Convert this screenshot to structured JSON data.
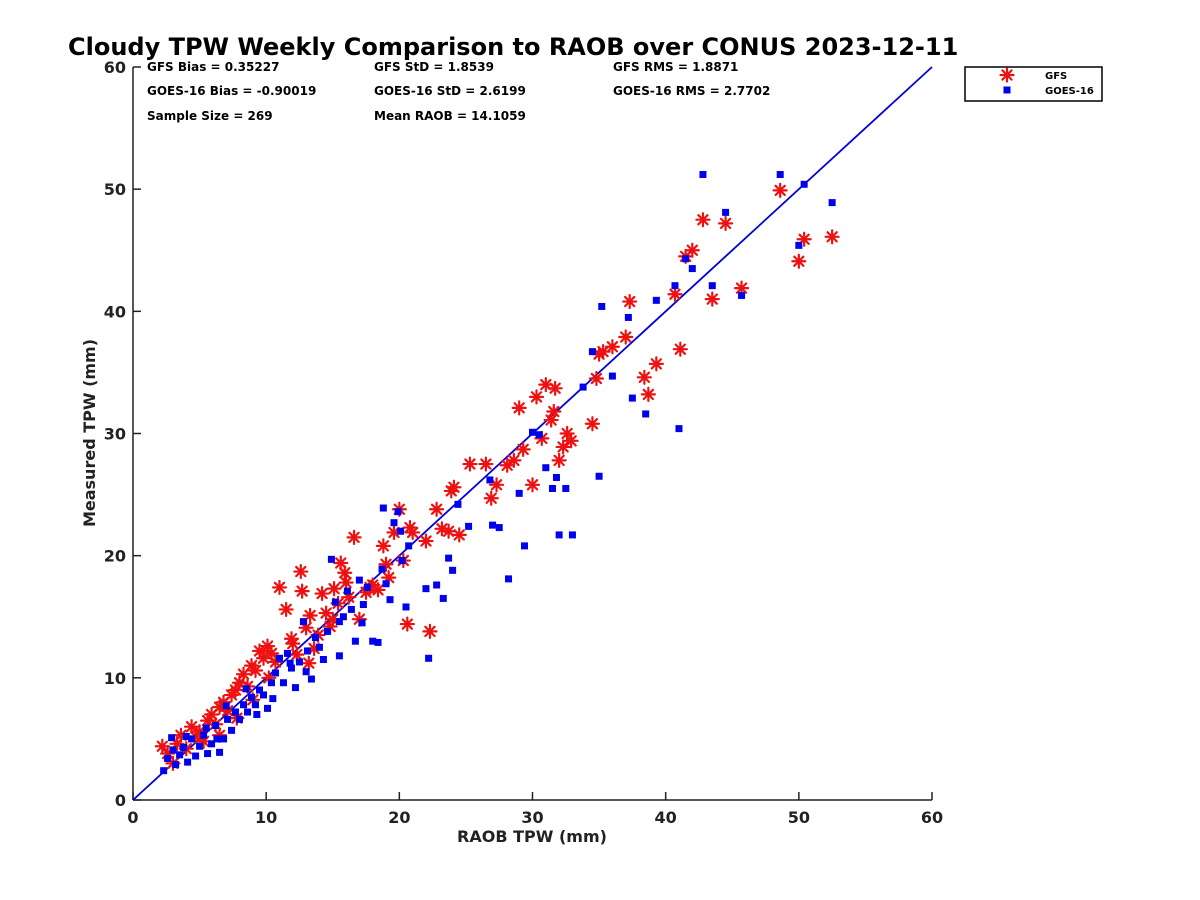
{
  "chart_data": {
    "type": "scatter",
    "title": "Cloudy TPW Weekly Comparison to RAOB over CONUS 2023-12-11",
    "xlabel": "RAOB TPW (mm)",
    "ylabel": "Measured TPW (mm)",
    "xlim": [
      0,
      60
    ],
    "ylim": [
      0,
      60
    ],
    "xticks": [
      "0",
      "10",
      "20",
      "30",
      "40",
      "50",
      "60"
    ],
    "yticks": [
      "0",
      "10",
      "20",
      "30",
      "40",
      "50",
      "60"
    ],
    "grid": false,
    "legend_position": "top-right",
    "reference_line": {
      "type": "one-to-one",
      "color": "#0000dd"
    },
    "stats": [
      [
        "GFS Bias = 0.35227",
        "GFS StD = 1.8539",
        "GFS RMS = 1.8871"
      ],
      [
        "GOES-16 Bias = -0.90019",
        "GOES-16 StD = 2.6199",
        "GOES-16 RMS = 2.7702"
      ],
      [
        "Sample Size = 269",
        "Mean RAOB = 14.1059",
        ""
      ]
    ],
    "series": [
      {
        "name": "GFS",
        "marker": "asterisk",
        "color": "#ee1111",
        "points": [
          [
            2.2,
            4.4
          ],
          [
            2.6,
            3.8
          ],
          [
            3.0,
            3.0
          ],
          [
            3.3,
            4.6
          ],
          [
            3.6,
            5.3
          ],
          [
            4.0,
            4.2
          ],
          [
            4.4,
            6.0
          ],
          [
            4.7,
            5.2
          ],
          [
            5.0,
            5.6
          ],
          [
            5.3,
            4.8
          ],
          [
            5.6,
            6.5
          ],
          [
            5.9,
            7.0
          ],
          [
            6.2,
            6.2
          ],
          [
            6.5,
            7.6
          ],
          [
            6.8,
            8.0
          ],
          [
            7.1,
            7.3
          ],
          [
            7.4,
            8.6
          ],
          [
            7.7,
            9.0
          ],
          [
            8.0,
            9.6
          ],
          [
            8.3,
            10.3
          ],
          [
            8.6,
            9.3
          ],
          [
            8.9,
            11.0
          ],
          [
            9.2,
            10.6
          ],
          [
            9.5,
            12.2
          ],
          [
            9.8,
            11.6
          ],
          [
            10.1,
            12.6
          ],
          [
            10.4,
            12.0
          ],
          [
            10.7,
            11.3
          ],
          [
            11.0,
            17.4
          ],
          [
            11.5,
            15.6
          ],
          [
            11.9,
            13.2
          ],
          [
            12.3,
            11.9
          ],
          [
            12.6,
            18.7
          ],
          [
            12.7,
            17.1
          ],
          [
            13.0,
            14.1
          ],
          [
            13.3,
            15.1
          ],
          [
            13.6,
            12.4
          ],
          [
            13.9,
            13.5
          ],
          [
            14.2,
            16.9
          ],
          [
            14.5,
            15.3
          ],
          [
            14.8,
            14.2
          ],
          [
            15.1,
            17.3
          ],
          [
            15.4,
            16.1
          ],
          [
            15.6,
            19.4
          ],
          [
            15.9,
            18.6
          ],
          [
            16.2,
            16.6
          ],
          [
            16.6,
            21.5
          ],
          [
            17.0,
            14.8
          ],
          [
            17.5,
            17.0
          ],
          [
            18.0,
            17.6
          ],
          [
            18.4,
            17.2
          ],
          [
            18.8,
            20.8
          ],
          [
            19.2,
            18.2
          ],
          [
            19.6,
            21.9
          ],
          [
            20.0,
            23.8
          ],
          [
            20.3,
            19.6
          ],
          [
            20.6,
            14.4
          ],
          [
            20.8,
            22.3
          ],
          [
            21.0,
            21.9
          ],
          [
            22.0,
            21.2
          ],
          [
            22.3,
            13.8
          ],
          [
            22.8,
            23.8
          ],
          [
            23.2,
            22.2
          ],
          [
            23.7,
            22.0
          ],
          [
            24.1,
            25.6
          ],
          [
            24.5,
            21.7
          ],
          [
            25.3,
            27.5
          ],
          [
            26.5,
            27.5
          ],
          [
            26.9,
            24.7
          ],
          [
            27.3,
            25.8
          ],
          [
            28.1,
            27.4
          ],
          [
            28.6,
            27.8
          ],
          [
            29.0,
            32.1
          ],
          [
            29.3,
            28.7
          ],
          [
            30.0,
            25.8
          ],
          [
            30.3,
            33.0
          ],
          [
            30.7,
            29.6
          ],
          [
            31.0,
            34.0
          ],
          [
            31.4,
            31.1
          ],
          [
            31.7,
            33.7
          ],
          [
            32.0,
            27.8
          ],
          [
            32.3,
            28.9
          ],
          [
            32.6,
            30.0
          ],
          [
            32.9,
            29.4
          ],
          [
            34.5,
            30.8
          ],
          [
            34.8,
            34.5
          ],
          [
            35.3,
            36.7
          ],
          [
            36.0,
            37.1
          ],
          [
            37.0,
            37.9
          ],
          [
            37.3,
            40.8
          ],
          [
            38.4,
            34.6
          ],
          [
            38.7,
            33.2
          ],
          [
            39.3,
            35.7
          ],
          [
            40.7,
            41.4
          ],
          [
            41.1,
            36.9
          ],
          [
            41.5,
            44.5
          ],
          [
            42.0,
            45.0
          ],
          [
            42.8,
            47.5
          ],
          [
            43.5,
            41.0
          ],
          [
            44.5,
            47.2
          ],
          [
            45.7,
            41.9
          ],
          [
            48.6,
            49.9
          ],
          [
            50.0,
            44.1
          ],
          [
            50.4,
            45.9
          ],
          [
            52.5,
            46.1
          ],
          [
            6.5,
            5.3
          ],
          [
            7.8,
            6.7
          ],
          [
            9.0,
            8.2
          ],
          [
            10.2,
            10.0
          ],
          [
            12.0,
            12.8
          ],
          [
            13.2,
            11.2
          ],
          [
            15.0,
            14.8
          ],
          [
            16.0,
            17.8
          ],
          [
            17.8,
            17.4
          ],
          [
            19.0,
            19.3
          ],
          [
            23.9,
            25.3
          ],
          [
            31.6,
            31.8
          ],
          [
            35.0,
            36.5
          ]
        ]
      },
      {
        "name": "GOES-16",
        "marker": "square",
        "color": "#0000ee",
        "points": [
          [
            2.3,
            2.4
          ],
          [
            2.6,
            3.4
          ],
          [
            2.9,
            5.1
          ],
          [
            3.2,
            2.9
          ],
          [
            3.5,
            3.7
          ],
          [
            3.8,
            4.3
          ],
          [
            4.1,
            3.1
          ],
          [
            4.4,
            5.0
          ],
          [
            4.7,
            3.6
          ],
          [
            5.0,
            4.4
          ],
          [
            5.3,
            5.3
          ],
          [
            5.6,
            3.8
          ],
          [
            5.9,
            4.6
          ],
          [
            6.2,
            6.1
          ],
          [
            6.5,
            3.9
          ],
          [
            6.8,
            5.0
          ],
          [
            7.1,
            6.6
          ],
          [
            7.4,
            5.7
          ],
          [
            7.7,
            7.2
          ],
          [
            8.0,
            6.6
          ],
          [
            8.3,
            7.8
          ],
          [
            8.6,
            7.2
          ],
          [
            8.9,
            8.4
          ],
          [
            9.2,
            7.8
          ],
          [
            9.5,
            9.0
          ],
          [
            9.8,
            8.6
          ],
          [
            10.1,
            7.5
          ],
          [
            10.4,
            9.6
          ],
          [
            10.7,
            10.4
          ],
          [
            11.0,
            11.6
          ],
          [
            11.3,
            9.6
          ],
          [
            11.6,
            12.0
          ],
          [
            11.9,
            10.8
          ],
          [
            12.2,
            9.2
          ],
          [
            12.5,
            11.3
          ],
          [
            12.8,
            14.6
          ],
          [
            13.1,
            12.2
          ],
          [
            13.4,
            9.9
          ],
          [
            13.7,
            13.3
          ],
          [
            14.0,
            12.5
          ],
          [
            14.3,
            11.5
          ],
          [
            14.6,
            13.8
          ],
          [
            14.9,
            19.7
          ],
          [
            15.2,
            16.2
          ],
          [
            15.5,
            14.6
          ],
          [
            15.8,
            15.0
          ],
          [
            16.1,
            17.1
          ],
          [
            16.4,
            15.6
          ],
          [
            16.7,
            13.0
          ],
          [
            17.0,
            18.0
          ],
          [
            17.3,
            16.0
          ],
          [
            17.6,
            17.4
          ],
          [
            18.0,
            13.0
          ],
          [
            18.4,
            12.9
          ],
          [
            18.7,
            18.9
          ],
          [
            19.0,
            17.7
          ],
          [
            19.3,
            16.4
          ],
          [
            19.6,
            22.7
          ],
          [
            19.9,
            23.6
          ],
          [
            20.2,
            19.6
          ],
          [
            20.5,
            15.8
          ],
          [
            20.7,
            20.8
          ],
          [
            22.0,
            17.3
          ],
          [
            22.2,
            11.6
          ],
          [
            22.8,
            17.6
          ],
          [
            23.3,
            16.5
          ],
          [
            23.7,
            19.8
          ],
          [
            24.0,
            18.8
          ],
          [
            24.4,
            24.2
          ],
          [
            25.2,
            22.4
          ],
          [
            27.0,
            22.5
          ],
          [
            27.5,
            22.3
          ],
          [
            28.2,
            18.1
          ],
          [
            29.0,
            25.1
          ],
          [
            29.4,
            20.8
          ],
          [
            30.0,
            30.1
          ],
          [
            30.5,
            29.9
          ],
          [
            31.0,
            27.2
          ],
          [
            31.5,
            25.5
          ],
          [
            32.0,
            21.7
          ],
          [
            32.5,
            25.5
          ],
          [
            33.0,
            21.7
          ],
          [
            34.5,
            36.7
          ],
          [
            35.0,
            26.5
          ],
          [
            35.2,
            40.4
          ],
          [
            36.0,
            34.7
          ],
          [
            37.2,
            39.5
          ],
          [
            37.5,
            32.9
          ],
          [
            38.5,
            31.6
          ],
          [
            39.3,
            40.9
          ],
          [
            40.7,
            42.1
          ],
          [
            41.0,
            30.4
          ],
          [
            41.5,
            44.3
          ],
          [
            42.0,
            43.5
          ],
          [
            42.8,
            51.2
          ],
          [
            43.5,
            42.1
          ],
          [
            44.5,
            48.1
          ],
          [
            45.7,
            41.3
          ],
          [
            48.6,
            51.2
          ],
          [
            50.0,
            45.4
          ],
          [
            50.4,
            50.4
          ],
          [
            52.5,
            48.9
          ],
          [
            3.0,
            4.1
          ],
          [
            4.0,
            5.2
          ],
          [
            5.5,
            5.9
          ],
          [
            6.3,
            5.0
          ],
          [
            7.0,
            7.7
          ],
          [
            8.5,
            9.1
          ],
          [
            9.3,
            7.0
          ],
          [
            10.5,
            8.3
          ],
          [
            11.8,
            11.2
          ],
          [
            13.0,
            10.5
          ],
          [
            15.5,
            11.8
          ],
          [
            17.2,
            14.5
          ],
          [
            18.8,
            23.9
          ],
          [
            20.1,
            22.0
          ],
          [
            26.8,
            26.2
          ],
          [
            31.8,
            26.4
          ],
          [
            33.8,
            33.8
          ]
        ]
      }
    ]
  }
}
